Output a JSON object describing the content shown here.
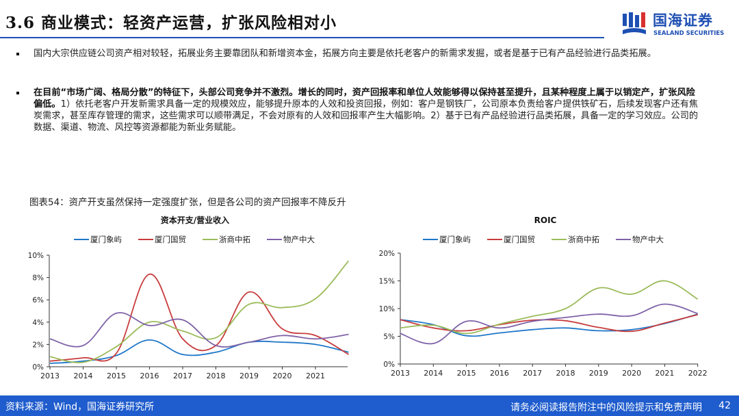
{
  "title": "3.6 商业模式：轻资产运营，扩张风险相对小",
  "logo": {
    "cn": "国海证券",
    "en": "SEALAND SECURITIES"
  },
  "bullets": [
    {
      "bold": "",
      "text": "国内大宗供应链公司资产相对较轻，拓展业务主要靠团队和新增资本金，拓展方向主要是依托老客户的新需求发掘，或者是基于已有产品经验进行品类拓展。"
    },
    {
      "bold": "在目前“市场广阔、格局分散”的特征下，头部公司竞争并不激烈。增长的同时，资产回报率和单位人效能够得以保持甚至提升，且某种程度上属于以销定产，扩张风险偏低。",
      "text": "1）依托老客户开发新需求具备一定的规模效应，能够提升原本的人效和投资回报，例如：客户是钢铁厂，公司原本负责给客户提供铁矿石，后续发现客户还有焦炭需求，甚至库存管理的需求，这些需求可以顺带满足，不会对原有的人效和回报率产生大幅影响。2）基于已有产品经验进行品类拓展，具备一定的学习效应。公司的数据、渠道、物流、风控等资源都能为新业务赋能。"
    }
  ],
  "figure_title": "图表54：资产开支虽然保持一定强度扩张，但是各公司的资产回报率不降反升",
  "footer": {
    "source": "资料来源：Wind，国海证券研究所",
    "disclaimer": "请务必阅读报告附注中的风险提示和免责声明",
    "page": "42"
  },
  "colors": {
    "xiamen_xiangyu": "#1f77c9",
    "xiamen_guomao": "#c83c3c",
    "zheshang_zhongtuo": "#9bbb59",
    "wuchan_zhongda": "#7e62a8",
    "brand": "#1e4fb3"
  },
  "chart_data": [
    {
      "type": "line",
      "title": "资本开支/营业收入",
      "x": [
        "2013",
        "2014",
        "2015",
        "2016",
        "2017",
        "2018",
        "2019",
        "2020",
        "2021",
        "2022"
      ],
      "x_tick_labels": [
        "2013",
        "2014",
        "2015",
        "2016",
        "2017",
        "2018",
        "2019",
        "2020",
        "2021"
      ],
      "ylim": [
        0,
        10
      ],
      "y_ticks": [
        0,
        2,
        4,
        6,
        8,
        10
      ],
      "y_tick_labels": [
        "0%",
        "2%",
        "4%",
        "6%",
        "8%",
        "10%"
      ],
      "legend": "top",
      "series": [
        {
          "name": "厦门象屿",
          "values": [
            0.3,
            0.5,
            1.0,
            2.4,
            1.1,
            1.3,
            2.2,
            2.2,
            2.0,
            1.3
          ]
        },
        {
          "name": "厦门国贸",
          "values": [
            0.5,
            0.8,
            1.2,
            8.3,
            2.5,
            1.9,
            6.7,
            3.4,
            2.8,
            1.1
          ]
        },
        {
          "name": "浙商中拓",
          "values": [
            0.9,
            0.4,
            1.8,
            4.0,
            3.2,
            2.6,
            5.6,
            5.3,
            6.1,
            9.5
          ]
        },
        {
          "name": "物产中大",
          "values": [
            2.5,
            1.9,
            4.8,
            3.7,
            4.2,
            1.9,
            2.2,
            2.8,
            2.5,
            2.9
          ]
        }
      ]
    },
    {
      "type": "line",
      "title": "ROIC",
      "x": [
        "2013",
        "2014",
        "2015",
        "2016",
        "2017",
        "2018",
        "2019",
        "2020",
        "2021",
        "2022"
      ],
      "x_tick_labels": [
        "2013",
        "2014",
        "2015",
        "2016",
        "2017",
        "2018",
        "2019",
        "2020",
        "2021",
        "2022"
      ],
      "ylim": [
        0,
        20
      ],
      "y_ticks": [
        0,
        5,
        10,
        15,
        20
      ],
      "y_tick_labels": [
        "0%",
        "5%",
        "10%",
        "15%",
        "20%"
      ],
      "legend": "top",
      "series": [
        {
          "name": "厦门象屿",
          "values": [
            8.0,
            7.1,
            5.1,
            5.6,
            6.2,
            6.5,
            6.0,
            6.2,
            7.3,
            9.0
          ]
        },
        {
          "name": "厦门国贸",
          "values": [
            8.0,
            6.5,
            6.0,
            7.1,
            7.9,
            7.8,
            6.6,
            5.9,
            7.4,
            8.9
          ]
        },
        {
          "name": "浙商中拓",
          "values": [
            6.5,
            7.0,
            5.5,
            7.2,
            8.6,
            10.0,
            13.7,
            12.6,
            15.0,
            11.7
          ]
        },
        {
          "name": "物产中大",
          "values": [
            5.5,
            3.7,
            7.7,
            6.5,
            7.7,
            8.4,
            9.0,
            8.7,
            10.8,
            9.1
          ]
        }
      ]
    }
  ]
}
